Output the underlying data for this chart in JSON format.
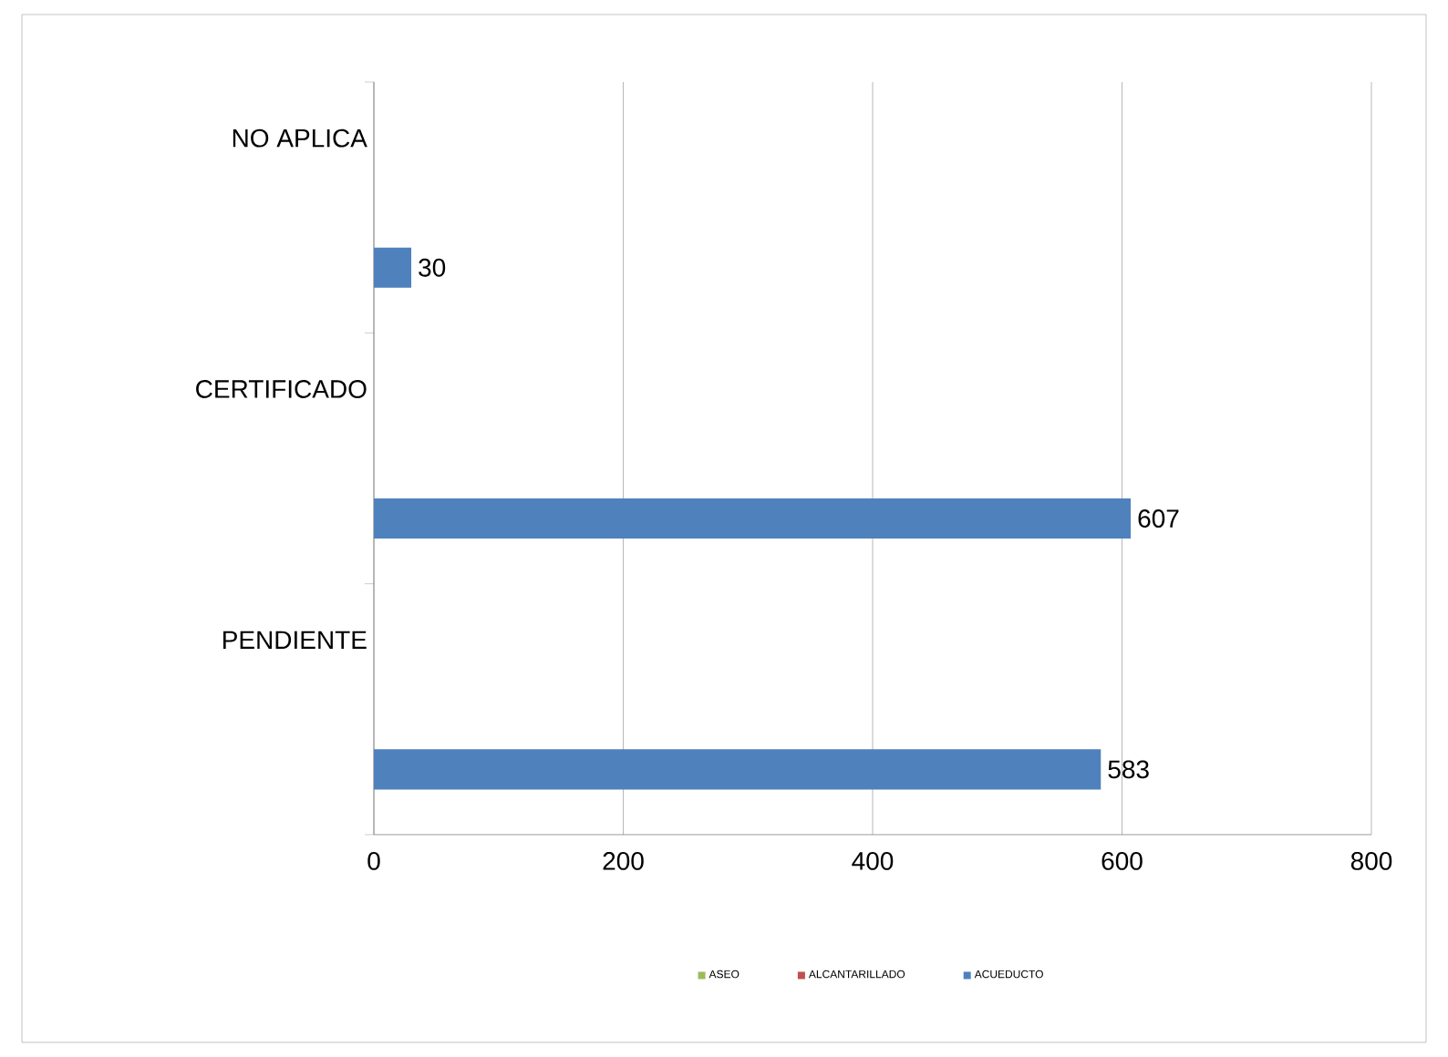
{
  "chart_data": {
    "type": "bar",
    "orientation": "horizontal",
    "categories": [
      "NO APLICA",
      "CERTIFICADO",
      "PENDIENTE"
    ],
    "series": [
      {
        "name": "ASEO",
        "color": "#9bbb59",
        "values": [
          null,
          null,
          null
        ]
      },
      {
        "name": "ALCANTARILLADO",
        "color": "#c0504d",
        "values": [
          null,
          null,
          null
        ]
      },
      {
        "name": "ACUEDUCTO",
        "color": "#4f81bd",
        "values": [
          30,
          607,
          583
        ]
      }
    ],
    "xlim": [
      0,
      800
    ],
    "xticks": [
      0,
      200,
      400,
      600,
      800
    ],
    "grid": "x",
    "legend": "bottom",
    "data_labels": true
  }
}
